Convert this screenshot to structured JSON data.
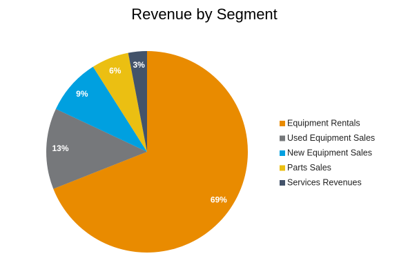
{
  "chart_data": {
    "type": "pie",
    "title": "Revenue by Segment",
    "categories": [
      "Equipment Rentals",
      "Used Equipment Sales",
      "New Equipment Sales",
      "Parts Sales",
      "Services Revenues"
    ],
    "values": [
      69,
      13,
      9,
      6,
      3
    ],
    "value_labels": [
      "69%",
      "13%",
      "9%",
      "6%",
      "3%"
    ],
    "colors": [
      "#e98b00",
      "#76787b",
      "#00a0e0",
      "#ebbf12",
      "#43536a"
    ],
    "legend": "right"
  }
}
